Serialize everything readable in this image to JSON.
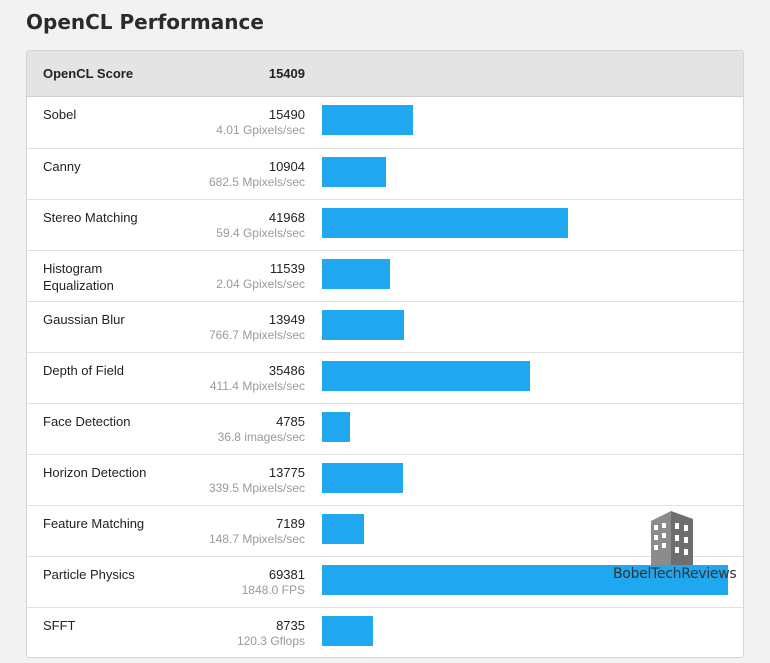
{
  "page": {
    "title": "OpenCL Performance"
  },
  "score": {
    "label": "OpenCL Score",
    "value": "15409"
  },
  "watermark": {
    "text": "BobelTechReviews"
  },
  "chart_data": {
    "type": "bar",
    "orientation": "horizontal",
    "title": "OpenCL Performance",
    "bar_color": "#1fa8f0",
    "xlim": [
      0,
      69381
    ],
    "categories": [
      "Sobel",
      "Canny",
      "Stereo Matching",
      "Histogram Equalization",
      "Gaussian Blur",
      "Depth of Field",
      "Face Detection",
      "Horizon Detection",
      "Feature Matching",
      "Particle Physics",
      "SFFT"
    ],
    "values": [
      15490,
      10904,
      41968,
      11539,
      13949,
      35486,
      4785,
      13775,
      7189,
      69381,
      8735
    ],
    "rates": [
      "4.01 Gpixels/sec",
      "682.5 Mpixels/sec",
      "59.4 Gpixels/sec",
      "2.04 Gpixels/sec",
      "766.7 Mpixels/sec",
      "411.4 Mpixels/sec",
      "36.8 images/sec",
      "339.5 Mpixels/sec",
      "148.7 Mpixels/sec",
      "1848.0 FPS",
      "120.3 Gflops"
    ]
  }
}
